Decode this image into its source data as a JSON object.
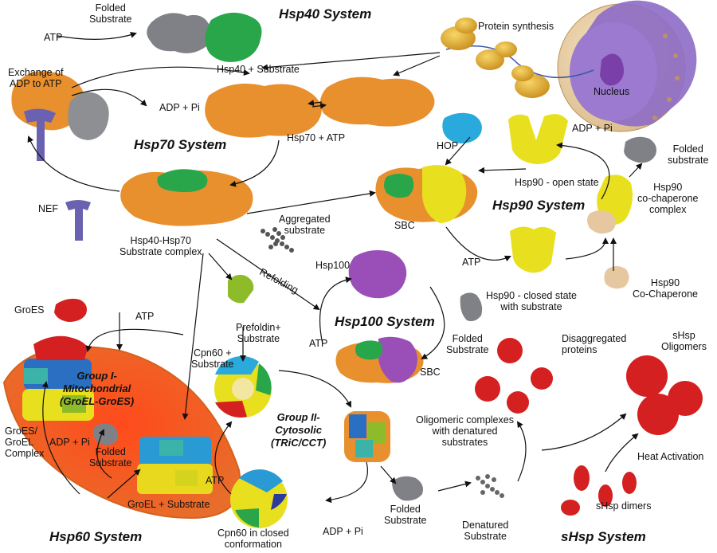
{
  "labels": {
    "folded_substrate_top": "Folded\nSubstrate",
    "atp_top": "ATP",
    "hsp40_substrate": "Hsp40 + Substrate",
    "protein_synthesis": "Protein synthesis",
    "nucleus": "Nucleus",
    "exchange": "Exchange of\nADP to ATP",
    "adp_pi_hsp70": "ADP + Pi",
    "hsp70_atp": "Hsp70 + ATP",
    "hop": "HOP",
    "adp_pi_hsp90": "ADP + Pi",
    "folded_substrate_hsp90": "Folded\nsubstrate",
    "hsp90_open": "Hsp90 - open state",
    "nef": "NEF",
    "hsp40_hsp70_complex": "Hsp40-Hsp70\nSubstrate complex",
    "aggregated": "Aggregated\nsubstrate",
    "sbc_hsp90": "SBC",
    "hsp90_cochaperone_complex": "Hsp90\nco-chaperone\ncomplex",
    "refolding": "Refolding",
    "hsp100": "Hsp100",
    "atp_hsp90": "ATP",
    "hsp90_closed": "Hsp90 - closed state\nwith substrate",
    "hsp90_cochaperone": "Hsp90\nCo-Chaperone",
    "groes": "GroES",
    "atp_hsp60": "ATP",
    "prefoldin": "Prefoldin+\nSubstrate",
    "atp_hsp100": "ATP",
    "sbc_hsp100": "SBC",
    "folded_substrate_hsp100": "Folded\nSubstrate",
    "disaggregated": "Disaggregated\nproteins",
    "shsp_oligomers": "sHsp\nOligomers",
    "cpn60_substrate": "Cpn60 +\nSubstrate",
    "groes_groel": "GroES/\nGroEL\nComplex",
    "adp_pi_hsp60": "ADP + Pi",
    "folded_substrate_hsp60": "Folded\nSubstrate",
    "oligomeric": "Oligomeric complexes\nwith denatured\nsubstrates",
    "heat_activation": "Heat Activation",
    "atp_cpn60": "ATP",
    "groel_substrate": "GroEL + Substrate",
    "shsp_dimers": "sHsp dimers",
    "cpn60_closed": "Cpn60 in closed\nconformation",
    "adp_pi_cct": "ADP + Pi",
    "folded_substrate_cct": "Folded\nSubstrate",
    "denatured": "Denatured\nSubstrate"
  },
  "systems": {
    "hsp40": "Hsp40 System",
    "hsp70": "Hsp70 System",
    "hsp90": "Hsp90 System",
    "hsp100": "Hsp100 System",
    "hsp60": "Hsp60 System",
    "shsp": "sHsp System"
  },
  "groups": {
    "group1": "Group I-\nMitochondrial\n(GroEL-GroES)",
    "group2": "Group II-\nCytosolic\n(TRiC/CCT)"
  },
  "colors": {
    "hsp70_orange": "#e8902e",
    "hsp40_green": "#2aa64a",
    "substrate_gray": "#8d8f93",
    "nef_purple": "#6a62b0",
    "hop_cyan": "#2aa9dc",
    "hsp90_yellow": "#e8e01e",
    "cochaperone_tan": "#e6c7a0",
    "hsp100_purple": "#9a4fb8",
    "prefoldin_green": "#8dbb2a",
    "shsp_red": "#d42020",
    "groel_blue": "#2a6fc2",
    "mitochondrion_orange": "#e8742a",
    "nucleus_purple": "#8d6bc6",
    "ribosome_gold": "#e2b02a"
  }
}
